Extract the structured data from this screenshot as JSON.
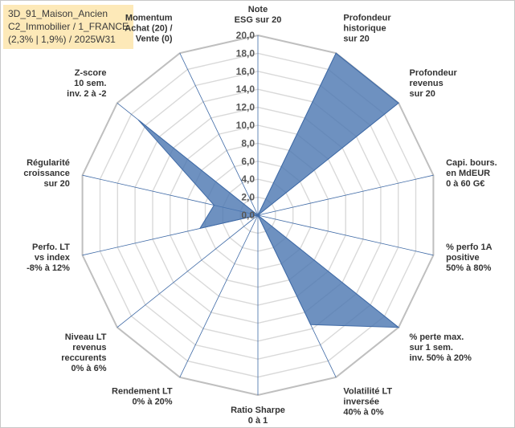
{
  "header": {
    "lines": [
      "3D_91_Maison_Ancien",
      "C2_Immobilier / 1_FRANCE",
      "(2,3% | 1,9%) / 2025W31"
    ]
  },
  "chart_data": {
    "type": "radar",
    "title": "",
    "range": [
      0,
      20
    ],
    "tick_step": 2,
    "tick_labels": [
      "0,0",
      "2,0",
      "4,0",
      "6,0",
      "8,0",
      "10,0",
      "12,0",
      "14,0",
      "16,0",
      "18,0",
      "20,0"
    ],
    "grid": true,
    "legend": "none",
    "colors": {
      "fill": "#4a76b0",
      "fill_opacity": 0.8,
      "stroke": "#3f6aa6",
      "grid": "#d9d9d9",
      "spoke": "#3f6aa6",
      "outer": "#bfbfbf"
    },
    "categories": [
      [
        "Note",
        "ESG sur 20"
      ],
      [
        "Profondeur",
        "historique",
        "sur 20"
      ],
      [
        "Profondeur",
        "revenus",
        "sur 20"
      ],
      [
        "Capi. bours.",
        "en MdEUR",
        "0 à 60 G€"
      ],
      [
        "% perfo 1A",
        "positive",
        "50% à 80%"
      ],
      [
        "% perte max.",
        "sur 1 sem.",
        "inv. 50% à 20%"
      ],
      [
        "Volatilité LT",
        "inversée",
        "40% à 0%"
      ],
      [
        "Ratio Sharpe",
        "0 à 1"
      ],
      [
        "Rendement LT",
        "0% à 20%"
      ],
      [
        "Niveau LT",
        "revenus",
        "reccurents",
        "0% à 6%"
      ],
      [
        "Perfo. LT",
        "vs index",
        "-8% à 12%"
      ],
      [
        "Régularité",
        "croissance",
        "sur 20"
      ],
      [
        "Z-score",
        "10 sem.",
        "inv. 2 à -2"
      ],
      [
        "Momentum",
        "Achat (20) /",
        "Vente (0)"
      ]
    ],
    "series": [
      {
        "values": [
          0,
          20,
          20,
          0,
          0,
          20,
          13.5,
          0,
          0,
          0,
          6.6,
          5.0,
          17.0,
          0
        ]
      }
    ]
  }
}
